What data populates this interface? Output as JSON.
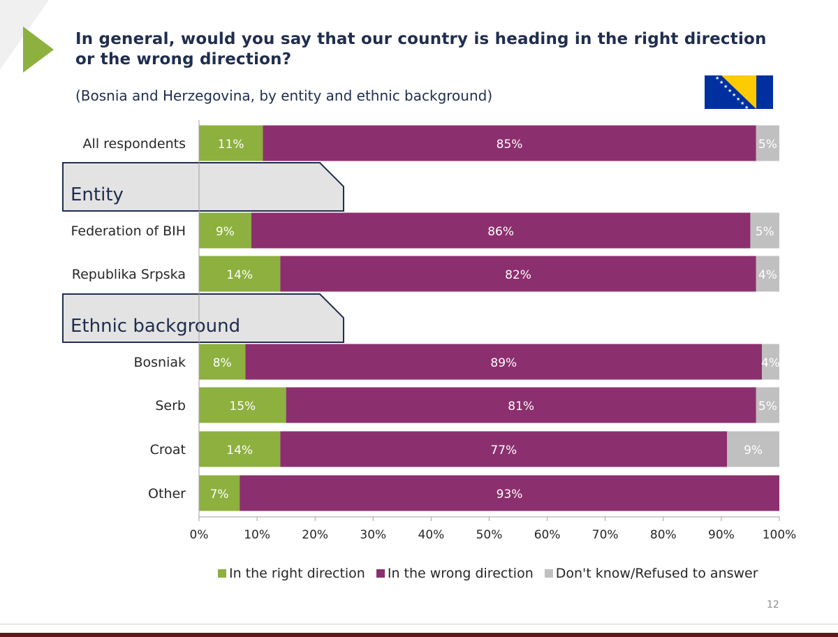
{
  "slide": {
    "title": "In general,  would you say that our country is heading in the right direction or the wrong direction?",
    "subtitle": "(Bosnia and Herzegovina, by entity and ethnic background)",
    "page_number": "12",
    "flag_icon": "bosnia-herzegovina-flag-icon",
    "accent_color": "#8db03f"
  },
  "chart_data": {
    "type": "bar",
    "orientation": "horizontal",
    "stacked": true,
    "categories": [
      "All respondents",
      "Federation of BIH",
      "Republika Srpska",
      "Bosniak",
      "Serb",
      "Croat",
      "Other"
    ],
    "groups": [
      {
        "label": "Entity",
        "before_category": "Federation of BIH"
      },
      {
        "label": "Ethnic background",
        "before_category": "Bosniak"
      }
    ],
    "series": [
      {
        "name": "In the right direction",
        "color": "#8db03f",
        "values": [
          11,
          9,
          14,
          8,
          15,
          14,
          7
        ],
        "labels": [
          "11%",
          "9%",
          "14%",
          "8%",
          "15%",
          "14%",
          "7%"
        ]
      },
      {
        "name": "In the wrong direction",
        "color": "#8c2f6e",
        "values": [
          85,
          86,
          82,
          89,
          81,
          77,
          93
        ],
        "labels": [
          "85%",
          "86%",
          "82%",
          "89%",
          "81%",
          "77%",
          "93%"
        ]
      },
      {
        "name": "Don't know/Refused to answer",
        "color": "#c0c0c0",
        "values": [
          5,
          5,
          4,
          4,
          5,
          9,
          0
        ],
        "labels": [
          "5%",
          "5%",
          "4%",
          "4%",
          "5%",
          "9%",
          ""
        ]
      }
    ],
    "xlim": [
      0,
      100
    ],
    "xticks": [
      "0%",
      "10%",
      "20%",
      "30%",
      "40%",
      "50%",
      "60%",
      "70%",
      "80%",
      "90%",
      "100%"
    ],
    "legend_position": "bottom",
    "grid": false
  }
}
